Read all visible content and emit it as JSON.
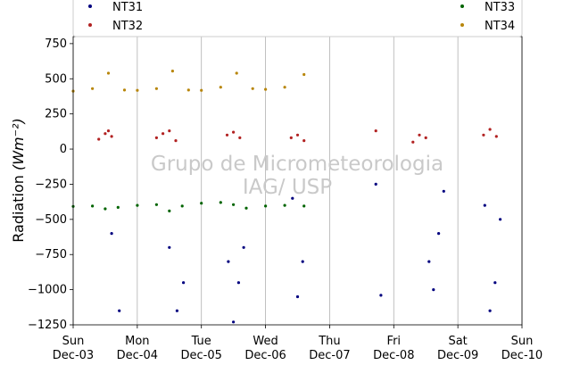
{
  "chart_data": {
    "type": "scatter",
    "title": "",
    "xlabel": "",
    "ylabel": "Radiation",
    "ylabel_unit": "(Wm⁻²)",
    "ylim": [
      -1250,
      800
    ],
    "yticks": [
      -1250,
      -1000,
      -750,
      -500,
      -250,
      0,
      250,
      500,
      750
    ],
    "xlim": [
      "2023-12-03",
      "2023-12-10"
    ],
    "xticks": [
      {
        "day": "Sun",
        "date": "Dec-03"
      },
      {
        "day": "Mon",
        "date": "Dec-04"
      },
      {
        "day": "Tue",
        "date": "Dec-05"
      },
      {
        "day": "Wed",
        "date": "Dec-06"
      },
      {
        "day": "Thu",
        "date": "Dec-07"
      },
      {
        "day": "Fri",
        "date": "Dec-08"
      },
      {
        "day": "Sat",
        "date": "Dec-09"
      },
      {
        "day": "Sun",
        "date": "Dec-10"
      }
    ],
    "grid": "vertical",
    "legend_position": "top",
    "watermark": [
      "Grupo de Micrometeorologia",
      "IAG/ USP"
    ],
    "series": [
      {
        "name": "NT31",
        "color": "#00007f",
        "x_days": [
          3.6,
          3.72,
          4.5,
          4.62,
          4.72,
          5.42,
          5.5,
          5.58,
          5.66,
          6.42,
          6.5,
          6.58,
          7.72,
          7.8,
          8.55,
          8.62,
          8.7,
          8.78,
          9.42,
          9.5,
          9.58,
          9.66
        ],
        "values": [
          -600,
          -1150,
          -700,
          -1150,
          -950,
          -800,
          -1230,
          -950,
          -700,
          -350,
          -1050,
          -800,
          -250,
          -1040,
          -800,
          -1000,
          -600,
          -300,
          -400,
          -1150,
          -950,
          -500
        ]
      },
      {
        "name": "NT32",
        "color": "#b22222",
        "x_days": [
          3.4,
          3.5,
          3.55,
          3.6,
          4.3,
          4.4,
          4.5,
          4.6,
          5.4,
          5.5,
          5.6,
          6.4,
          6.5,
          6.6,
          7.72,
          8.3,
          8.4,
          8.5,
          9.4,
          9.5,
          9.6
        ],
        "values": [
          70,
          110,
          130,
          90,
          80,
          110,
          130,
          60,
          100,
          120,
          80,
          80,
          100,
          60,
          130,
          50,
          100,
          80,
          100,
          140,
          90
        ]
      },
      {
        "name": "NT33",
        "color": "#006400",
        "x_days": [
          3.0,
          3.3,
          3.5,
          3.7,
          4.0,
          4.3,
          4.5,
          4.7,
          5.0,
          5.3,
          5.5,
          5.7,
          6.0,
          6.3,
          6.6
        ],
        "values": [
          -408,
          -405,
          -425,
          -415,
          -400,
          -395,
          -440,
          -405,
          -385,
          -380,
          -395,
          -420,
          -405,
          -400,
          -405
        ]
      },
      {
        "name": "NT34",
        "color": "#b8860b",
        "x_days": [
          3.0,
          3.3,
          3.55,
          3.8,
          4.0,
          4.3,
          4.55,
          4.8,
          5.0,
          5.3,
          5.55,
          5.8,
          6.0,
          6.3,
          6.6
        ],
        "values": [
          412,
          430,
          540,
          420,
          418,
          430,
          555,
          420,
          418,
          440,
          540,
          430,
          425,
          440,
          530
        ]
      }
    ]
  }
}
